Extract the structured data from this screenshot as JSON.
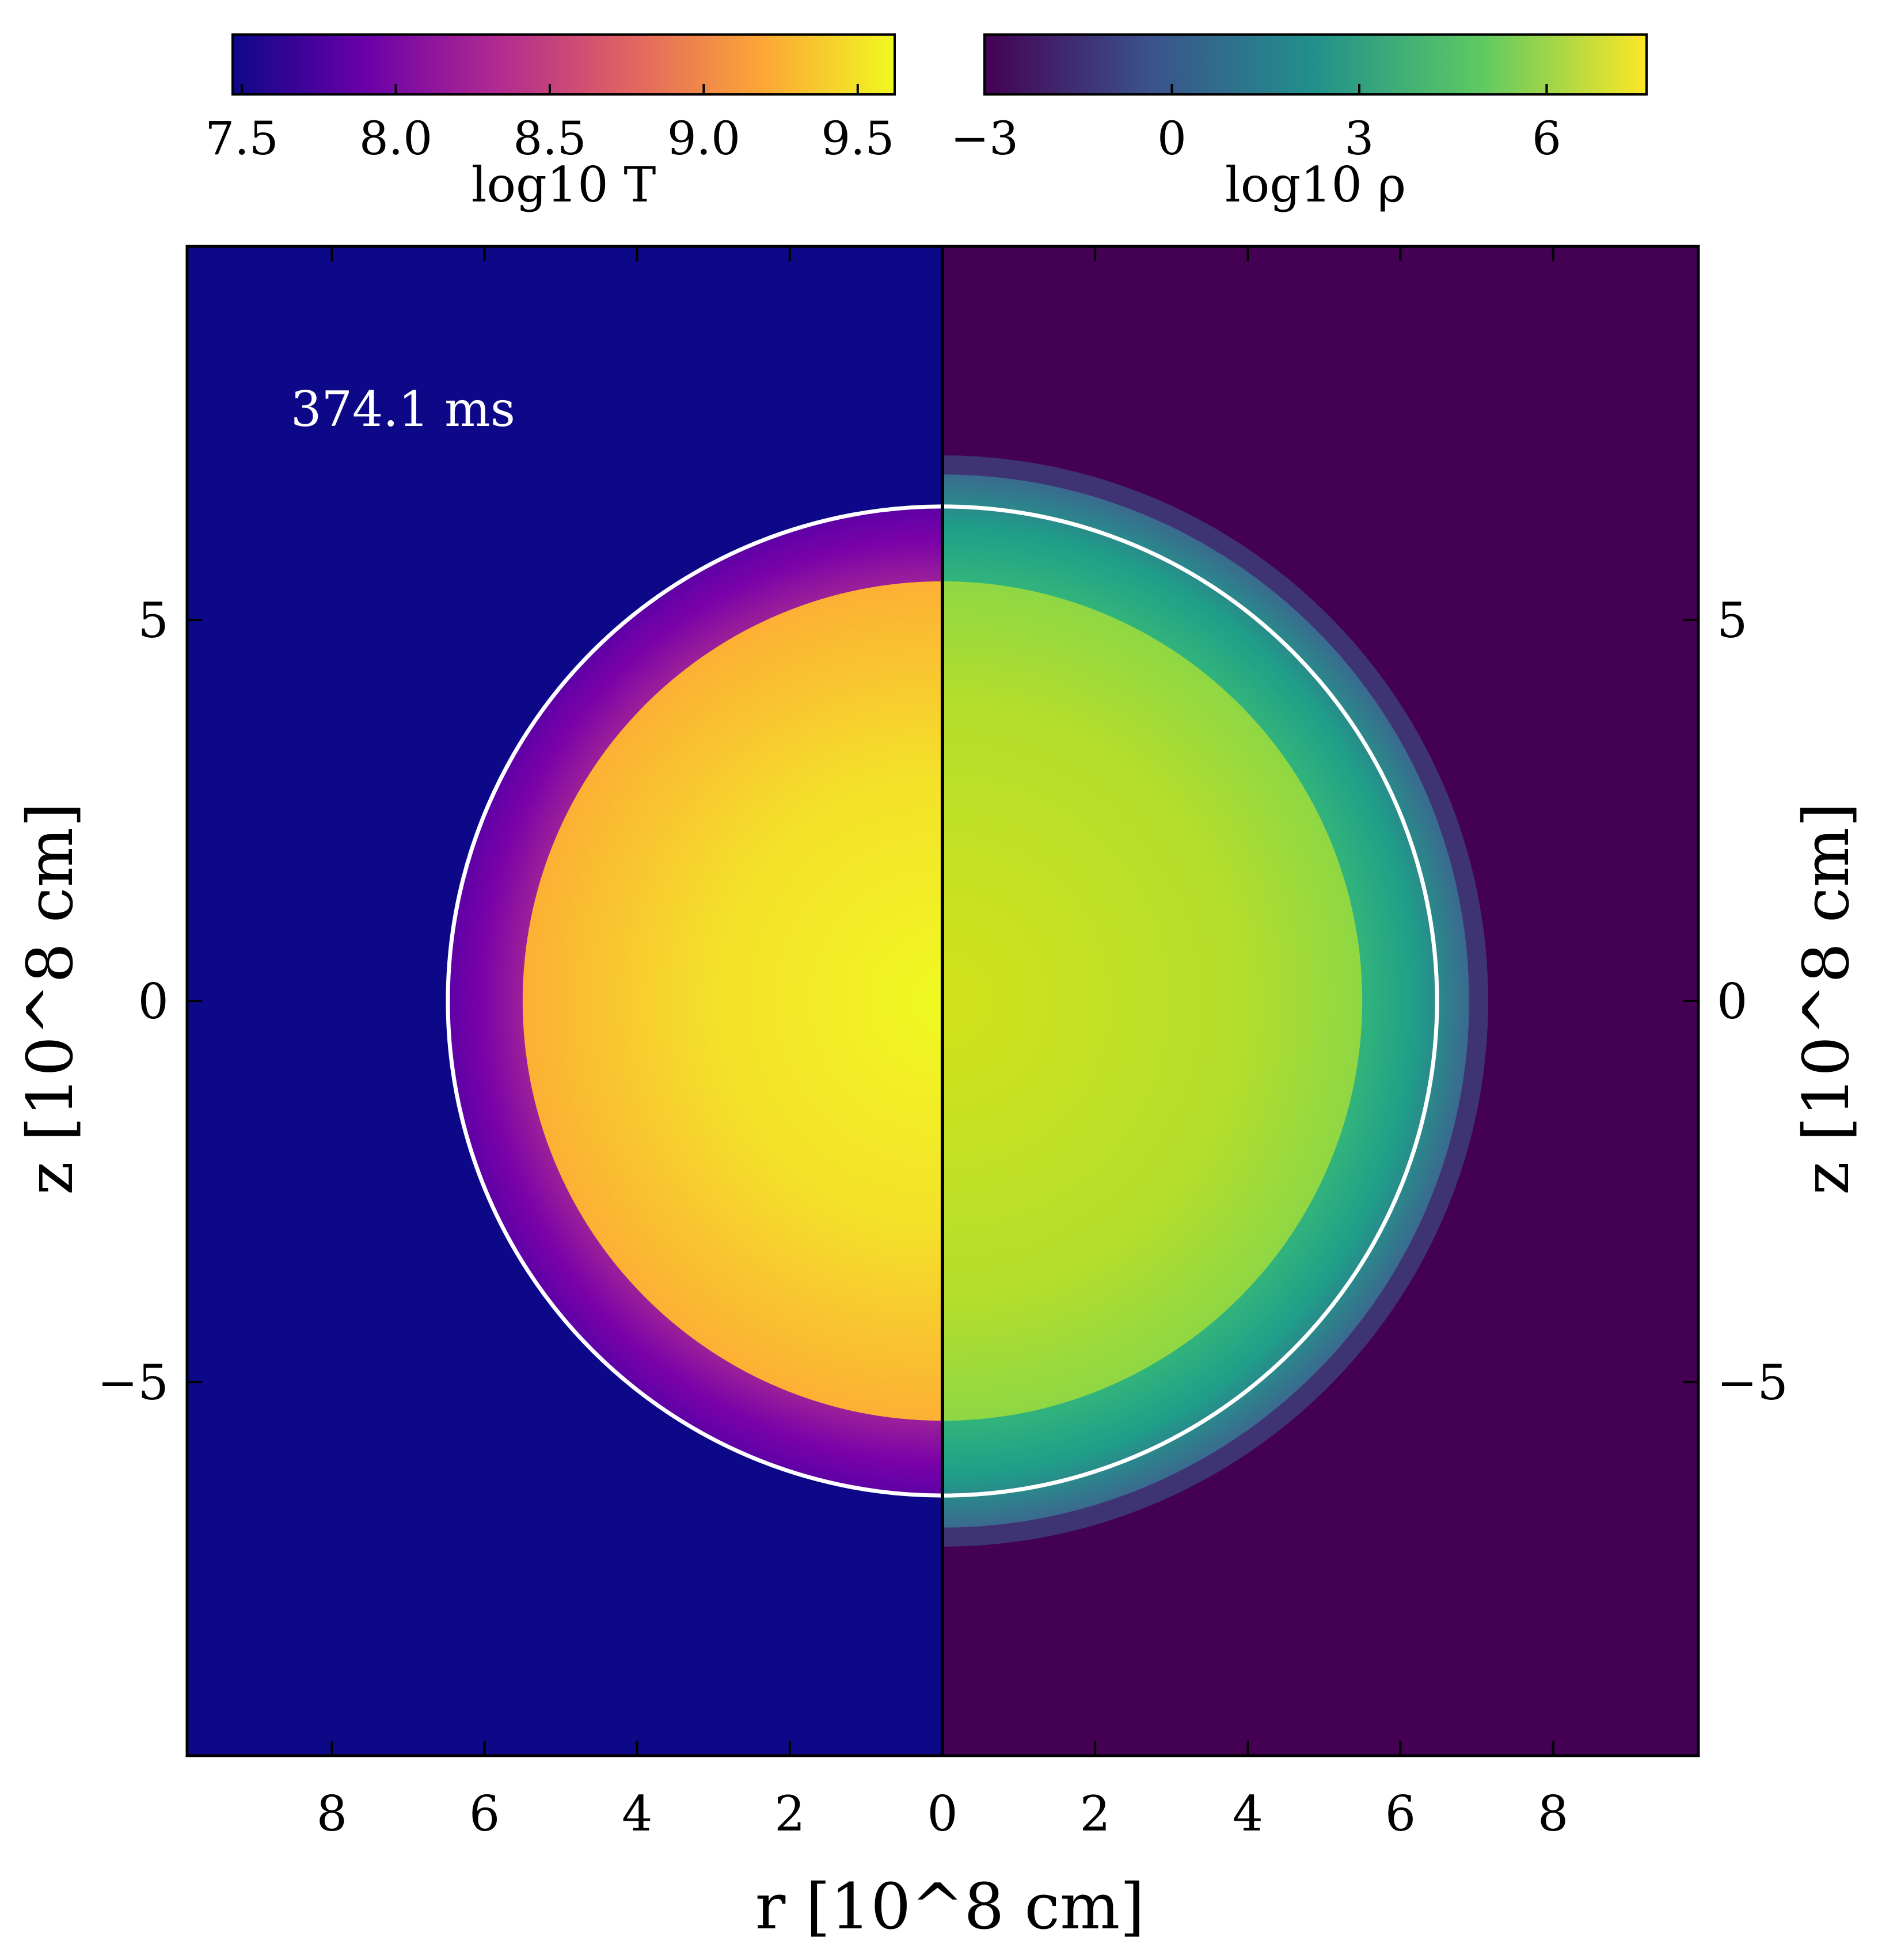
{
  "figure": {
    "time_label": "374.1 ms",
    "xlabel": "r [10^8 cm]",
    "ylabel_left": "z [10^8 cm]",
    "ylabel_right": "z [10^8 cm]"
  },
  "colorbars": [
    {
      "label": "log10 T",
      "colormap": "plasma",
      "range": [
        7.47,
        9.62
      ],
      "ticks": [
        7.5,
        8.0,
        8.5,
        9.0,
        9.5
      ],
      "tick_labels": [
        "7.5",
        "8.0",
        "8.5",
        "9.0",
        "9.5"
      ],
      "colors": [
        "#0d0887",
        "#6a00a8",
        "#b12a90",
        "#e16462",
        "#fca636",
        "#f0f921"
      ]
    },
    {
      "label": "log10 ρ",
      "colormap": "viridis",
      "range": [
        -3.0,
        7.6
      ],
      "ticks": [
        -3,
        0,
        3,
        6
      ],
      "tick_labels": [
        "−3",
        "0",
        "3",
        "6"
      ],
      "colors": [
        "#440154",
        "#3b528b",
        "#21918c",
        "#5ec962",
        "#fde725"
      ]
    }
  ],
  "chart_data": {
    "type": "heatmap",
    "description_units": "10^8 cm",
    "x_left": {
      "range": [
        0,
        9.9
      ],
      "reversed": true,
      "ticks": [
        8,
        6,
        4,
        2,
        0
      ],
      "tick_labels": [
        "8",
        "6",
        "4",
        "2",
        "0"
      ]
    },
    "x_right": {
      "range": [
        0,
        9.9
      ],
      "ticks": [
        2,
        4,
        6,
        8
      ],
      "tick_labels": [
        "2",
        "4",
        "6",
        "8"
      ]
    },
    "y": {
      "range": [
        -9.9,
        9.9
      ],
      "ticks": [
        5,
        0,
        -5
      ],
      "tick_labels": [
        "5",
        "0",
        "−5"
      ]
    },
    "left_panel": {
      "quantity": "log10 T",
      "background": 7.5,
      "inner_core": {
        "radius": 5.5,
        "value": 9.6,
        "edge_value": 9.3
      },
      "outer_shell": {
        "radius": 6.5,
        "value": 8.0
      }
    },
    "right_panel": {
      "quantity": "log10 rho",
      "background": -3.0,
      "inner_core": {
        "radius": 5.5,
        "value": 6.0
      },
      "outer_shell": {
        "radius": 6.9,
        "value": 2.5
      }
    },
    "reference_circle": {
      "radius": 6.48,
      "color": "#ffffff"
    },
    "colors": {
      "left_background": "#0d0887",
      "right_background": "#440154",
      "shell_T": "#7a02a8",
      "shell_rho": "#21918c"
    }
  }
}
